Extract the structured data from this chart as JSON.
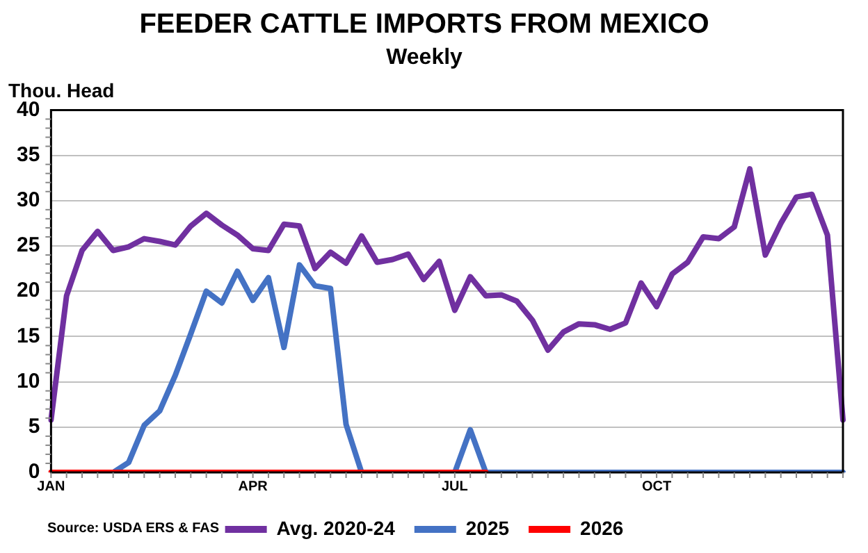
{
  "chart_data": {
    "type": "line",
    "title": "FEEDER CATTLE IMPORTS FROM MEXICO",
    "subtitle": "Weekly",
    "ylabel": "Thou. Head",
    "categories": [
      "JAN",
      null,
      null,
      null,
      null,
      null,
      null,
      null,
      null,
      null,
      null,
      null,
      null,
      "APR",
      null,
      null,
      null,
      null,
      null,
      null,
      null,
      null,
      null,
      null,
      null,
      null,
      "JUL",
      null,
      null,
      null,
      null,
      null,
      null,
      null,
      null,
      null,
      null,
      null,
      null,
      "OCT",
      null,
      null,
      null,
      null,
      null,
      null,
      null,
      null,
      null,
      null,
      null,
      null
    ],
    "series": [
      {
        "name": "Avg. 2020-24",
        "color": "#7030a0",
        "values": [
          5.8,
          19.5,
          24.5,
          26.6,
          24.5,
          24.9,
          25.8,
          25.5,
          25.1,
          27.2,
          28.6,
          27.3,
          26.2,
          24.7,
          24.5,
          27.4,
          27.2,
          22.5,
          24.3,
          23.1,
          26.1,
          23.2,
          23.5,
          24.1,
          21.3,
          23.3,
          17.9,
          21.6,
          19.5,
          19.6,
          18.9,
          16.8,
          13.5,
          15.5,
          16.4,
          16.3,
          15.8,
          16.5,
          20.9,
          18.3,
          21.9,
          23.2,
          26.0,
          25.8,
          27.1,
          33.5,
          24.0,
          27.5,
          30.4,
          30.7,
          26.2,
          5.8
        ]
      },
      {
        "name": "2025",
        "color": "#4472c4",
        "values": [
          null,
          null,
          null,
          null,
          0,
          1.1,
          5.2,
          6.8,
          10.7,
          15.3,
          20.0,
          18.7,
          22.2,
          19.0,
          21.5,
          13.8,
          22.9,
          20.6,
          20.3,
          5.3,
          0,
          0,
          0,
          0,
          0,
          0,
          0,
          4.7,
          0,
          0,
          0,
          0,
          0,
          0,
          0,
          0,
          0,
          0,
          0,
          0,
          0,
          0,
          0,
          0,
          0,
          0,
          0,
          0,
          0,
          0,
          0,
          0
        ]
      },
      {
        "name": "2026",
        "color": "#ff0000",
        "values": [
          0,
          0,
          0,
          0,
          0,
          0,
          0,
          0,
          0,
          0,
          0,
          0,
          0,
          0,
          0,
          0,
          0,
          0,
          0,
          0,
          0,
          0,
          0,
          0,
          0,
          0,
          0,
          0,
          0,
          null,
          null,
          null,
          null,
          null,
          null,
          null,
          null,
          null,
          null,
          null,
          null,
          null,
          null,
          null,
          null,
          null,
          null,
          null,
          null,
          null,
          null,
          null
        ]
      }
    ],
    "ylim": [
      0,
      40
    ],
    "yticks": [
      0,
      5,
      10,
      15,
      20,
      25,
      30,
      35,
      40
    ],
    "grid": "y",
    "legend": "bottom",
    "marker": "none",
    "line_style": "solid",
    "annotations": [
      "Source: USDA ERS & FAS"
    ]
  }
}
